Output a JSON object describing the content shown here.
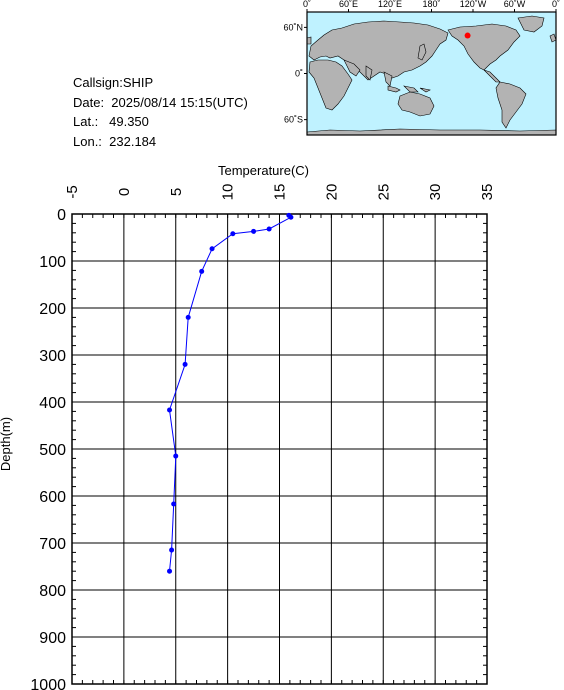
{
  "info": {
    "callsign": "Callsign:SHIP",
    "date": "Date:  2025/08/14 15:15(UTC)",
    "lat": "Lat.:   49.350",
    "lon": "Lon.:  232.184"
  },
  "map": {
    "lon_labels": [
      "0˚",
      "60˚E",
      "120˚E",
      "180˚",
      "120˚W",
      "60˚W",
      "0˚"
    ],
    "lat_labels": [
      "60˚N",
      "0˚",
      "60˚S"
    ],
    "ocean_color": "#bff2ff",
    "land_color": "#b3b3b3",
    "marker_color": "#ff0000",
    "marker": {
      "lon": 232.184,
      "lat": 49.35
    }
  },
  "chart_data": {
    "type": "line",
    "xlabel": "Temperature(C)",
    "ylabel": "Depth(m)",
    "xlim": [
      -5,
      35
    ],
    "ylim": [
      0,
      1000
    ],
    "y_inverted": true,
    "x_ticks": [
      "-5",
      "0",
      "5",
      "10",
      "15",
      "20",
      "25",
      "30",
      "35"
    ],
    "y_ticks": [
      "0",
      "100",
      "200",
      "300",
      "400",
      "500",
      "600",
      "700",
      "800",
      "900",
      "1000"
    ],
    "grid": true,
    "series": [
      {
        "color": "#0000ff",
        "points": [
          {
            "t": 15.9,
            "d": 3
          },
          {
            "t": 16.1,
            "d": 7
          },
          {
            "t": 14.0,
            "d": 32
          },
          {
            "t": 12.5,
            "d": 37
          },
          {
            "t": 10.5,
            "d": 42
          },
          {
            "t": 8.5,
            "d": 74
          },
          {
            "t": 7.5,
            "d": 122
          },
          {
            "t": 6.2,
            "d": 220
          },
          {
            "t": 5.9,
            "d": 320
          },
          {
            "t": 4.4,
            "d": 417
          },
          {
            "t": 5.0,
            "d": 515
          },
          {
            "t": 4.8,
            "d": 617
          },
          {
            "t": 4.6,
            "d": 715
          },
          {
            "t": 4.4,
            "d": 760
          }
        ]
      }
    ]
  }
}
